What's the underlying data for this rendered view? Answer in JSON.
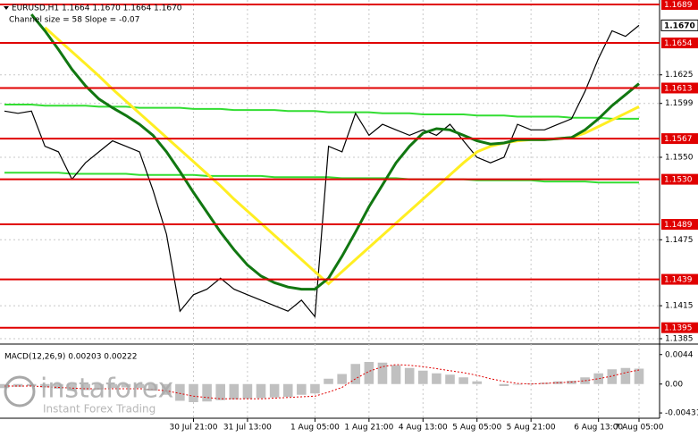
{
  "header": {
    "symbol": "EURUSD,H1  1.1664 1.1670 1.1664 1.1670",
    "channel": "Channel size = 58 Slope = -0.07"
  },
  "watermark": {
    "brand": "instaforex",
    "tagline": "Instant Forex Trading"
  },
  "chart_data": [
    {
      "type": "line",
      "categories": [
        null,
        null,
        null,
        null,
        null,
        null,
        null,
        null,
        null,
        null,
        null,
        null,
        null,
        null,
        "30 Jul 21:00",
        null,
        null,
        null,
        "31 Jul 13:00",
        null,
        null,
        null,
        null,
        "1 Aug 05:00",
        null,
        null,
        null,
        "1 Aug 21:00",
        null,
        null,
        null,
        "4 Aug 13:00",
        null,
        null,
        null,
        "5 Aug 05:00",
        null,
        null,
        null,
        "5 Aug 21:00",
        null,
        null,
        null,
        null,
        "6 Aug 13:00",
        null,
        null,
        "7 Aug 05:00"
      ],
      "ylim": [
        1.1385,
        1.1689
      ],
      "yticks": [
        1.1625,
        1.1599,
        {
          "value": 1.155,
          "label": "1.1550"
        },
        1.1475,
        1.1415,
        1.1385
      ],
      "levels": [
        1.1689,
        1.1654,
        1.1613,
        1.1567,
        {
          "value": 1.153,
          "label": "1.1530"
        },
        1.1489,
        1.1439,
        1.1395
      ],
      "level_color": "#e00000",
      "last": {
        "value": 1.167,
        "label": "1.1670"
      },
      "grid": true,
      "series": [
        {
          "color": "#33dd33",
          "width": 2,
          "values": [
            1.1598,
            1.1598,
            1.1598,
            1.1597,
            1.1597,
            1.1597,
            1.1597,
            1.1596,
            1.1596,
            1.1596,
            1.1595,
            1.1595,
            1.1595,
            1.1595,
            1.1594,
            1.1594,
            1.1594,
            1.1593,
            1.1593,
            1.1593,
            1.1593,
            1.1592,
            1.1592,
            1.1592,
            1.1591,
            1.1591,
            1.1591,
            1.1591,
            1.159,
            1.159,
            1.159,
            1.1589,
            1.1589,
            1.1589,
            1.1589,
            1.1588,
            1.1588,
            1.1588,
            1.1587,
            1.1587,
            1.1587,
            1.1587,
            1.1586,
            1.1586,
            1.1586,
            1.1585,
            1.1585,
            1.1585
          ]
        },
        {
          "color": "#33dd33",
          "width": 2,
          "values": [
            1.1536,
            1.1536,
            1.1536,
            1.1536,
            1.1536,
            1.1535,
            1.1535,
            1.1535,
            1.1535,
            1.1535,
            1.1534,
            1.1534,
            1.1534,
            1.1534,
            1.1534,
            1.1533,
            1.1533,
            1.1533,
            1.1533,
            1.1533,
            1.1532,
            1.1532,
            1.1532,
            1.1532,
            1.1532,
            1.1531,
            1.1531,
            1.1531,
            1.1531,
            1.1531,
            1.153,
            1.153,
            1.153,
            1.153,
            1.153,
            1.1529,
            1.1529,
            1.1529,
            1.1529,
            1.1529,
            1.1528,
            1.1528,
            1.1528,
            1.1528,
            1.1527,
            1.1527,
            1.1527,
            1.1527
          ]
        },
        {
          "color": "#000000",
          "width": 1.2,
          "values": [
            1.1592,
            1.159,
            1.1592,
            1.156,
            1.1555,
            1.153,
            1.1545,
            1.1555,
            1.1565,
            1.156,
            1.1555,
            1.152,
            1.148,
            1.141,
            1.1425,
            1.143,
            1.144,
            1.143,
            1.1425,
            1.142,
            1.1415,
            1.141,
            1.142,
            1.1405,
            1.156,
            1.1555,
            1.159,
            1.157,
            1.158,
            1.1575,
            1.157,
            1.1575,
            1.157,
            1.158,
            1.1565,
            1.155,
            1.1545,
            1.155,
            1.158,
            1.1575,
            1.1575,
            1.158,
            1.1585,
            1.161,
            1.164,
            1.1665,
            1.166,
            1.167
          ]
        },
        {
          "color": "#ffee22",
          "width": 3,
          "values": [
            null,
            null,
            null,
            1.1668,
            1.1657,
            1.1646,
            1.1635,
            1.1624,
            1.1612,
            1.1601,
            1.159,
            1.1579,
            1.1568,
            1.1557,
            1.1546,
            1.1535,
            1.1524,
            1.1512,
            1.1501,
            1.149,
            1.1479,
            1.1468,
            1.1457,
            1.1446,
            1.1435,
            1.1446,
            1.1457,
            1.1468,
            1.1479,
            1.149,
            1.1501,
            1.1512,
            1.1523,
            1.1534,
            1.1545,
            1.1555,
            1.156,
            1.1563,
            1.1565,
            1.1566,
            1.1566,
            1.1567,
            1.1568,
            1.1572,
            1.1578,
            1.1584,
            1.159,
            1.1596
          ]
        },
        {
          "color": "#117711",
          "width": 3,
          "values": [
            null,
            null,
            1.168,
            1.1665,
            1.1648,
            1.163,
            1.1615,
            1.1603,
            1.1595,
            1.1588,
            1.158,
            1.157,
            1.1555,
            1.1537,
            1.1518,
            1.15,
            1.1482,
            1.1466,
            1.1452,
            1.1442,
            1.1436,
            1.1432,
            1.143,
            1.143,
            1.144,
            1.146,
            1.1482,
            1.1505,
            1.1525,
            1.1545,
            1.156,
            1.1572,
            1.1576,
            1.1575,
            1.157,
            1.1565,
            1.1562,
            1.1563,
            1.1566,
            1.1566,
            1.1566,
            1.1567,
            1.1568,
            1.1575,
            1.1585,
            1.1597,
            1.1607,
            1.1617
          ]
        }
      ]
    },
    {
      "type": "macd",
      "title": "MACD(12,26,9) 0.00203 0.00222",
      "ylim": [
        -0.0051,
        0.0053
      ],
      "yticks": [
        0.0044,
        {
          "value": 0,
          "label": "0.00"
        },
        -0.00431
      ],
      "series": [
        {
          "style": "bar",
          "color": "#c0c0c0",
          "values": [
            -0.0006,
            -0.0004,
            -0.0003,
            -0.0005,
            -0.0007,
            -0.001,
            -0.0009,
            -0.0008,
            -0.0006,
            -0.0005,
            -0.0006,
            -0.001,
            -0.0016,
            -0.0025,
            -0.0027,
            -0.0026,
            -0.0024,
            -0.0023,
            -0.0022,
            -0.0021,
            -0.002,
            -0.0019,
            -0.0016,
            -0.0014,
            0.0008,
            0.0015,
            0.003,
            0.0033,
            0.0032,
            0.0028,
            0.0024,
            0.002,
            0.0016,
            0.0014,
            0.001,
            0.0004,
            0,
            -0.0003,
            -0.0001,
            0.0001,
            0.0002,
            0.0004,
            0.0005,
            0.001,
            0.0016,
            0.0022,
            0.0024,
            0.0023
          ]
        },
        {
          "style": "line",
          "color": "#e00000",
          "values": [
            -0.0003,
            -0.0003,
            -0.0003,
            -0.0004,
            -0.0005,
            -0.0006,
            -0.0007,
            -0.0007,
            -0.0007,
            -0.0007,
            -0.0007,
            -0.0008,
            -0.001,
            -0.0014,
            -0.0018,
            -0.002,
            -0.0022,
            -0.0022,
            -0.0022,
            -0.0022,
            -0.0021,
            -0.002,
            -0.0019,
            -0.0018,
            -0.0012,
            -0.0005,
            0.0008,
            0.0019,
            0.0026,
            0.0029,
            0.0028,
            0.0026,
            0.0023,
            0.002,
            0.0017,
            0.0013,
            0.0008,
            0.0004,
            0.0001,
            0,
            0.0001,
            0.0002,
            0.0003,
            0.0005,
            0.0008,
            0.0012,
            0.0017,
            0.0021
          ]
        }
      ]
    }
  ]
}
